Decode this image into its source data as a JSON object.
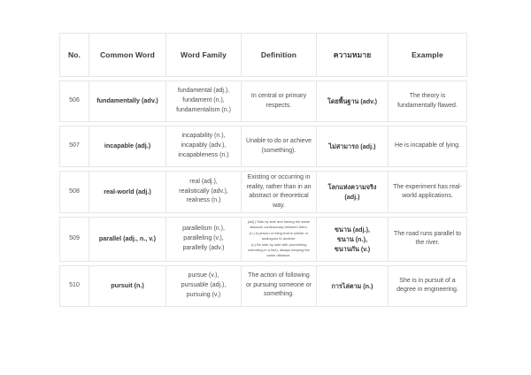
{
  "page": {
    "background": "#ffffff",
    "border_color": "#e6e6e6",
    "header_text_color": "#3a3a3a",
    "body_text_color": "#4f4f4f"
  },
  "table": {
    "columns": [
      "No.",
      "Common Word",
      "Word Family",
      "Definition",
      "ความหมาย",
      "Example"
    ],
    "rows": [
      {
        "no": "506",
        "common_word": "fundamentally (adv.)",
        "word_family": [
          "fundamental (adj.),",
          "fundament (n.),",
          "fundamentalism (n.)"
        ],
        "definition": [
          "In central or primary respects."
        ],
        "definition_small": false,
        "meaning": [
          "โดยพื้นฐาน (adv.)"
        ],
        "example": "The theory is fundamentally flawed."
      },
      {
        "no": "507",
        "common_word": "incapable (adj.)",
        "word_family": [
          "incapability (n.),",
          "incapably (adv.),",
          "incapableness (n.)"
        ],
        "definition": [
          "Unable to do or achieve (something)."
        ],
        "definition_small": false,
        "meaning": [
          "ไม่สามารถ (adj.)"
        ],
        "example": "He is incapable of lying."
      },
      {
        "no": "508",
        "common_word": "real-world (adj.)",
        "word_family": [
          "real (adj.),",
          "realistically (adv.),",
          "realness (n.)"
        ],
        "definition": [
          "Existing or occurring in reality, rather than in an abstract or theoretical way."
        ],
        "definition_small": false,
        "meaning": [
          "โลกแห่งความจริง (adj.)"
        ],
        "example": "The experiment has real-world applications."
      },
      {
        "no": "509",
        "common_word": "parallel (adj., n., v.)",
        "word_family": [
          "parallelism (n.),",
          "paralleling (v.),",
          "parallelly (adv.)"
        ],
        "definition": [
          "(adj.) Side by side and having the same distance continuously between them.",
          "(n.) A person or thing that is similar or analogous to another.",
          "(v.) Be side by side with (something extending in a line), always keeping the same distance."
        ],
        "definition_small": true,
        "meaning": [
          "ขนาน (adj.),",
          "ขนาน (n.),",
          "ขนานกัน (v.)"
        ],
        "example": "The road runs parallel to the river."
      },
      {
        "no": "510",
        "common_word": "pursuit (n.)",
        "word_family": [
          "pursue (v.),",
          "pursuable (adj.),",
          "pursuing (v.)"
        ],
        "definition": [
          "The action of following or pursuing someone or something."
        ],
        "definition_small": false,
        "meaning": [
          "การไล่ตาม (n.)"
        ],
        "example": "She is in pursuit of a degree in engineering."
      }
    ]
  }
}
